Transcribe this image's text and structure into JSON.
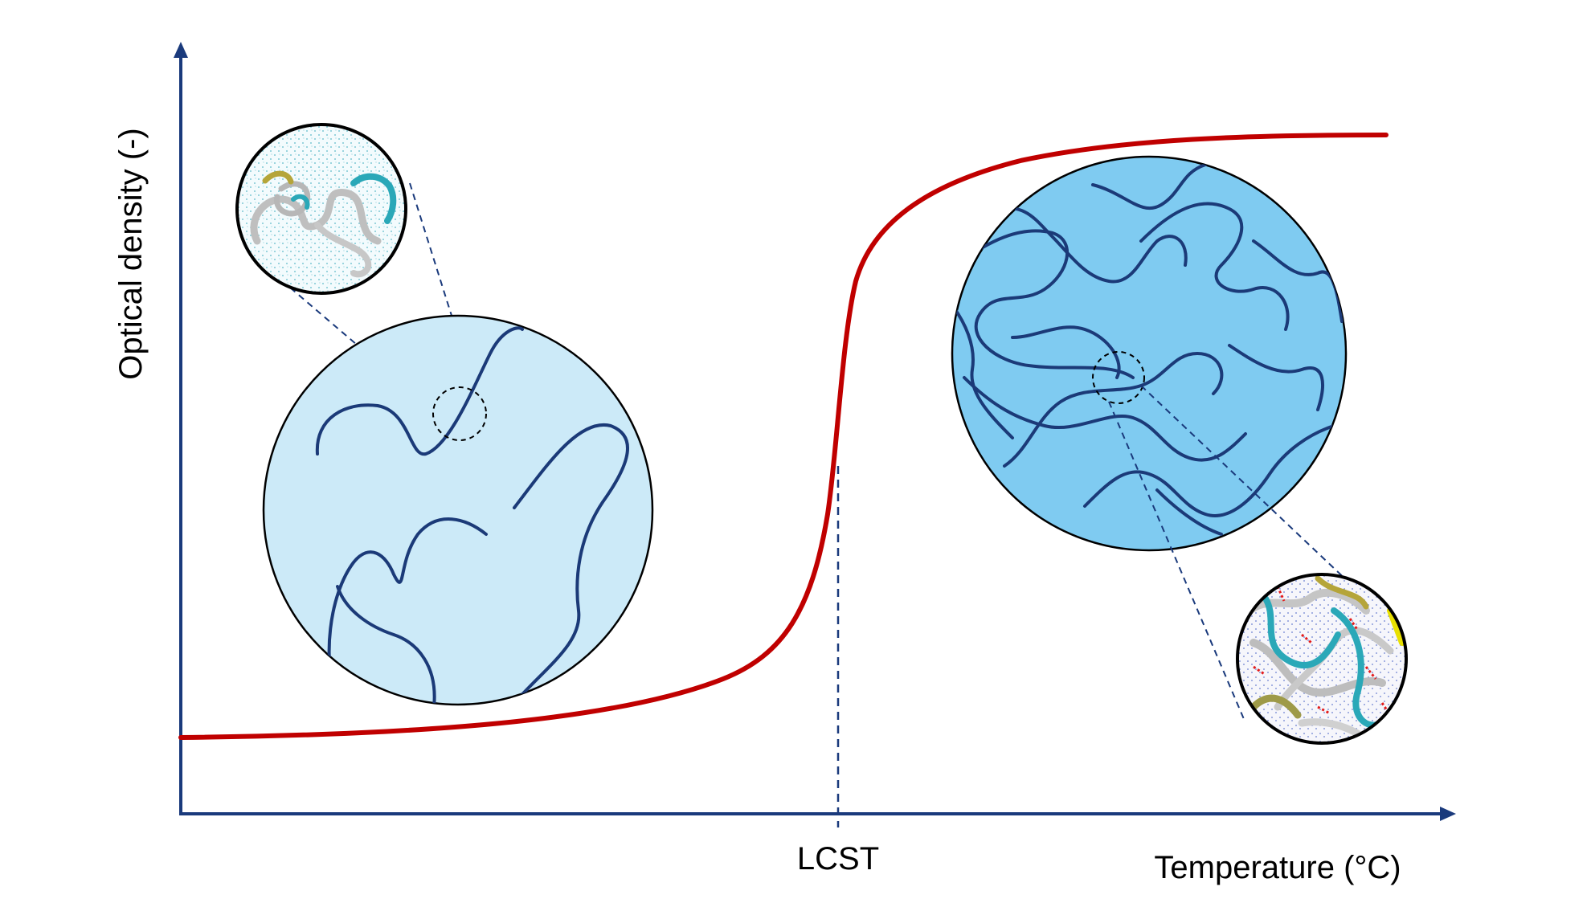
{
  "labels": {
    "y_axis": "Optical density (-)",
    "x_axis": "Temperature (°C)",
    "transition": "LCST"
  },
  "colors": {
    "axis": "#1a3a7c",
    "curve": "#c00000",
    "chain": "#1b3a78",
    "coil_fill": "#cceaf8",
    "globule_fill": "#7fcbf1",
    "inset_border": "#000000"
  },
  "regions": {
    "below_lcst": "coil-state-expanded-chains",
    "above_lcst": "globule-state-collapsed-chains"
  },
  "icons": {
    "coil_inset": "solvated-polymer-snapshot-icon",
    "globule_inset": "aggregated-polymer-snapshot-icon"
  }
}
